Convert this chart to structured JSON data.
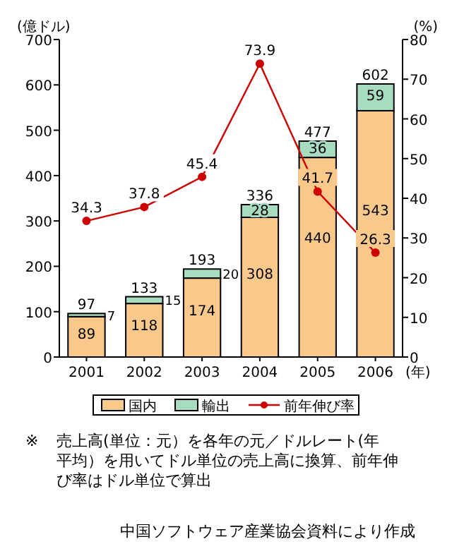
{
  "chart_data": {
    "type": "bar",
    "stacked": true,
    "categories": [
      "2001",
      "2002",
      "2003",
      "2004",
      "2005",
      "2006"
    ],
    "xlabel": "(年)",
    "ylabel": "(億ドル)",
    "y2label": "(%)",
    "ylim": [
      0,
      700
    ],
    "yticks": [
      0,
      100,
      200,
      300,
      400,
      500,
      600,
      700
    ],
    "y2lim": [
      0,
      80
    ],
    "y2ticks": [
      0,
      10,
      20,
      30,
      40,
      50,
      60,
      70,
      80
    ],
    "series": [
      {
        "name": "国内",
        "color": "#f9c98c",
        "values": [
          89,
          118,
          174,
          308,
          440,
          543
        ]
      },
      {
        "name": "輸出",
        "color": "#a8dcc0",
        "values": [
          7,
          15,
          20,
          28,
          36,
          59
        ]
      },
      {
        "name": "前年伸び率",
        "type": "line",
        "axis": "y2",
        "color": "#cc0000",
        "values": [
          34.3,
          37.8,
          45.4,
          73.9,
          41.7,
          26.3
        ]
      }
    ],
    "totals": [
      "97",
      "133",
      "193",
      "336",
      "477",
      "602"
    ],
    "data_labels": true,
    "marker": "circle",
    "legend": "bottom",
    "grid": false,
    "annotations": [
      "※　売上高(単位：元）を各年の元／ドルレート(年平均）を用いてドル単位の売上高に換算、前年伸び率はドル単位で算出",
      "中国ソフトウェア産業協会資料により作成"
    ]
  }
}
